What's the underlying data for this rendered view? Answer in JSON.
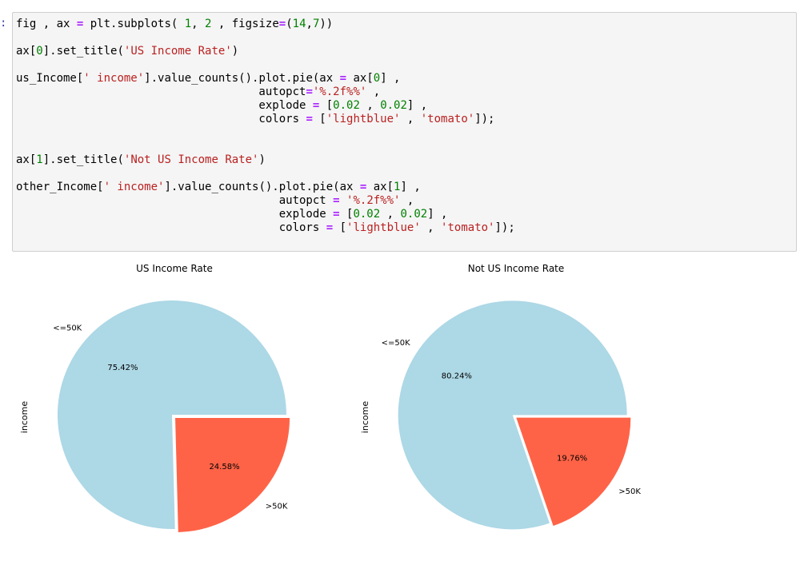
{
  "prompt": ":",
  "code_lines": [
    [
      [
        "t",
        "fig , ax "
      ],
      [
        "o",
        "="
      ],
      [
        "t",
        " plt.subplots( "
      ],
      [
        "n",
        "1"
      ],
      [
        "t",
        ", "
      ],
      [
        "n",
        "2"
      ],
      [
        "t",
        " , figsize"
      ],
      [
        "o",
        "="
      ],
      [
        "t",
        "("
      ],
      [
        "n",
        "14"
      ],
      [
        "t",
        ","
      ],
      [
        "n",
        "7"
      ],
      [
        "t",
        "))"
      ]
    ],
    [],
    [
      [
        "t",
        "ax["
      ],
      [
        "n",
        "0"
      ],
      [
        "t",
        "].set_title("
      ],
      [
        "s",
        "'US Income Rate'"
      ],
      [
        "t",
        ")"
      ]
    ],
    [],
    [
      [
        "t",
        "us_Income["
      ],
      [
        "s",
        "' income'"
      ],
      [
        "t",
        "].value_counts().plot.pie(ax "
      ],
      [
        "o",
        "="
      ],
      [
        "t",
        " ax["
      ],
      [
        "n",
        "0"
      ],
      [
        "t",
        "] ,"
      ]
    ],
    [
      [
        "t",
        "                                    autopct"
      ],
      [
        "o",
        "="
      ],
      [
        "s",
        "'%.2f%%'"
      ],
      [
        "t",
        " ,"
      ]
    ],
    [
      [
        "t",
        "                                    explode "
      ],
      [
        "o",
        "="
      ],
      [
        "t",
        " ["
      ],
      [
        "n",
        "0.02"
      ],
      [
        "t",
        " , "
      ],
      [
        "n",
        "0.02"
      ],
      [
        "t",
        "] ,"
      ]
    ],
    [
      [
        "t",
        "                                    colors "
      ],
      [
        "o",
        "="
      ],
      [
        "t",
        " ["
      ],
      [
        "s",
        "'lightblue'"
      ],
      [
        "t",
        " , "
      ],
      [
        "s",
        "'tomato'"
      ],
      [
        "t",
        "]);"
      ]
    ],
    [],
    [],
    [
      [
        "t",
        "ax["
      ],
      [
        "n",
        "1"
      ],
      [
        "t",
        "].set_title("
      ],
      [
        "s",
        "'Not US Income Rate'"
      ],
      [
        "t",
        ")"
      ]
    ],
    [],
    [
      [
        "t",
        "other_Income["
      ],
      [
        "s",
        "' income'"
      ],
      [
        "t",
        "].value_counts().plot.pie(ax "
      ],
      [
        "o",
        "="
      ],
      [
        "t",
        " ax["
      ],
      [
        "n",
        "1"
      ],
      [
        "t",
        "] ,"
      ]
    ],
    [
      [
        "t",
        "                                       autopct "
      ],
      [
        "o",
        "="
      ],
      [
        "t",
        " "
      ],
      [
        "s",
        "'%.2f%%'"
      ],
      [
        "t",
        " ,"
      ]
    ],
    [
      [
        "t",
        "                                       explode "
      ],
      [
        "o",
        "="
      ],
      [
        "t",
        " ["
      ],
      [
        "n",
        "0.02"
      ],
      [
        "t",
        " , "
      ],
      [
        "n",
        "0.02"
      ],
      [
        "t",
        "] ,"
      ]
    ],
    [
      [
        "t",
        "                                       colors "
      ],
      [
        "o",
        "="
      ],
      [
        "t",
        " ["
      ],
      [
        "s",
        "'lightblue'"
      ],
      [
        "t",
        " , "
      ],
      [
        "s",
        "'tomato'"
      ],
      [
        "t",
        "]);"
      ]
    ]
  ],
  "colors": {
    "lightblue": "#add8e6",
    "tomato": "#ff6347",
    "code_bg": "#f5f5f5",
    "keyword_op": "#aa22ff",
    "string": "#ba2121",
    "number": "#008000"
  },
  "chart_data": [
    {
      "type": "pie",
      "title": "US Income Rate",
      "ylabel": "income",
      "categories": [
        "<=50K",
        ">50K"
      ],
      "values": [
        75.42,
        24.58
      ],
      "labels_pct": [
        "75.42%",
        "24.58%"
      ],
      "colors": [
        "#add8e6",
        "#ff6347"
      ],
      "explode": [
        0.02,
        0.02
      ]
    },
    {
      "type": "pie",
      "title": "Not US Income Rate",
      "ylabel": "income",
      "categories": [
        "<=50K",
        ">50K"
      ],
      "values": [
        80.24,
        19.76
      ],
      "labels_pct": [
        "80.24%",
        "19.76%"
      ],
      "colors": [
        "#add8e6",
        "#ff6347"
      ],
      "explode": [
        0.02,
        0.02
      ]
    }
  ]
}
